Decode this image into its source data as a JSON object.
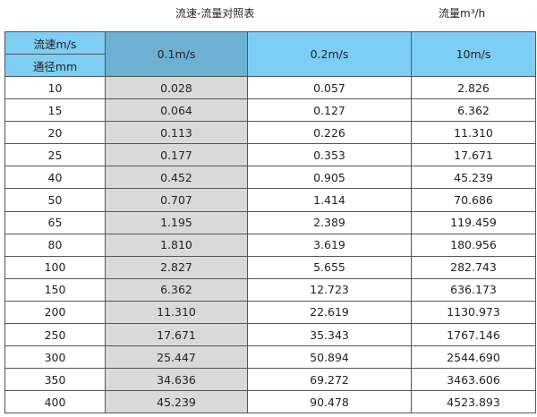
{
  "title": "流速-流量对照表",
  "unit": "流量m³/h",
  "header": {
    "speed_label": "流速m/s",
    "diameter_label": "通径mm",
    "columns": [
      "0.1m/s",
      "0.2m/s",
      "10m/s"
    ]
  },
  "colors": {
    "header": "#7ecdf4",
    "selected_header": "#6cb0d4",
    "selected_column": "#d9d9d9"
  },
  "rows": [
    [
      "10",
      "0.028",
      "0.057",
      "2.826"
    ],
    [
      "15",
      "0.064",
      "0.127",
      "6.362"
    ],
    [
      "20",
      "0.113",
      "0.226",
      "11.310"
    ],
    [
      "25",
      "0.177",
      "0.353",
      "17.671"
    ],
    [
      "40",
      "0.452",
      "0.905",
      "45.239"
    ],
    [
      "50",
      "0.707",
      "1.414",
      "70.686"
    ],
    [
      "65",
      "1.195",
      "2.389",
      "119.459"
    ],
    [
      "80",
      "1.810",
      "3.619",
      "180.956"
    ],
    [
      "100",
      "2.827",
      "5.655",
      "282.743"
    ],
    [
      "150",
      "6.362",
      "12.723",
      "636.173"
    ],
    [
      "200",
      "11.310",
      "22.619",
      "1130.973"
    ],
    [
      "250",
      "17.671",
      "35.343",
      "1767.146"
    ],
    [
      "300",
      "25.447",
      "50.894",
      "2544.690"
    ],
    [
      "350",
      "34.636",
      "69.272",
      "3463.606"
    ],
    [
      "400",
      "45.239",
      "90.478",
      "4523.893"
    ]
  ]
}
